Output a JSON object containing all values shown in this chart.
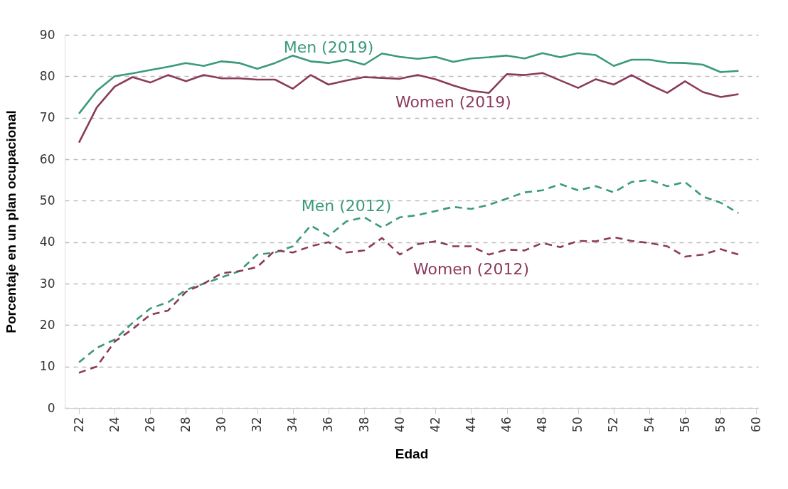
{
  "chart_data": {
    "type": "line",
    "xlabel": "Edad",
    "ylabel": "Porcentaje en un plan ocupacional",
    "x": [
      22,
      23,
      24,
      25,
      26,
      27,
      28,
      29,
      30,
      31,
      32,
      33,
      34,
      35,
      36,
      37,
      38,
      39,
      40,
      41,
      42,
      43,
      44,
      45,
      46,
      47,
      48,
      49,
      50,
      51,
      52,
      53,
      54,
      55,
      56,
      57,
      58,
      59
    ],
    "series": [
      {
        "name": "Men (2019)",
        "color": "#3a9a7c",
        "line_style": "solid",
        "values": [
          71,
          76.5,
          80,
          80.7,
          81.5,
          82.3,
          83.2,
          82.5,
          83.6,
          83.2,
          81.8,
          83.2,
          85,
          83.6,
          83.2,
          84,
          82.8,
          85.5,
          84.7,
          84.2,
          84.7,
          83.5,
          84.3,
          84.6,
          85,
          84.3,
          85.6,
          84.6,
          85.6,
          85.1,
          82.5,
          84,
          84,
          83.3,
          83.2,
          82.8,
          81,
          81.3
        ]
      },
      {
        "name": "Women (2019)",
        "color": "#8c3a5c",
        "line_style": "solid",
        "values": [
          64,
          72.5,
          77.5,
          79.8,
          78.5,
          80.3,
          78.8,
          80.3,
          79.5,
          79.5,
          79.2,
          79.2,
          77,
          80.3,
          78,
          79,
          79.8,
          79.6,
          79.4,
          80.3,
          79.3,
          77.8,
          76.5,
          76,
          80.5,
          80.3,
          80.8,
          79,
          77.2,
          79.3,
          78,
          80.3,
          78,
          76,
          78.8,
          76.2,
          75,
          75.7
        ]
      },
      {
        "name": "Men (2012)",
        "color": "#3a9a7c",
        "line_style": "dashed",
        "values": [
          11,
          14.5,
          16.5,
          20.5,
          24,
          25.5,
          28.5,
          30,
          31.5,
          33,
          37,
          37.5,
          39,
          44,
          41.5,
          45,
          46,
          43.5,
          46,
          46.5,
          47.5,
          48.5,
          48,
          49,
          50.5,
          52,
          52.5,
          54,
          52.5,
          53.5,
          52,
          54.5,
          55,
          53.5,
          54.5,
          51,
          49.5,
          47
        ]
      },
      {
        "name": "Women (2012)",
        "color": "#8c3a5c",
        "line_style": "dashed",
        "values": [
          8.5,
          10,
          16,
          19,
          22.5,
          23.5,
          28,
          30,
          32.5,
          33,
          34,
          38,
          37.5,
          39,
          40,
          37.5,
          38,
          41,
          37,
          39.5,
          40.2,
          39,
          39,
          37,
          38.2,
          38,
          39.8,
          38.8,
          40.3,
          40.2,
          41.2,
          40.3,
          39.8,
          39,
          36.5,
          37,
          38.3,
          37
        ]
      }
    ],
    "xlim": [
      21.2,
      60.1
    ],
    "xticks": [
      22,
      24,
      26,
      28,
      30,
      32,
      34,
      36,
      38,
      40,
      42,
      44,
      46,
      48,
      50,
      52,
      54,
      56,
      58,
      60
    ],
    "ylim": [
      0,
      90
    ],
    "yticks": [
      0,
      10,
      20,
      30,
      40,
      50,
      60,
      70,
      80,
      90
    ],
    "grid": "y",
    "marker": "none"
  }
}
